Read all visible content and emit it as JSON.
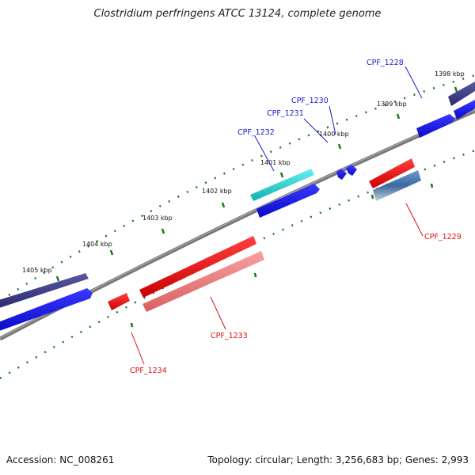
{
  "title": "Clostridium perfringens ATCC 13124, complete genome",
  "footer": {
    "accession": "Accession: NC_008261",
    "summary": "Topology: circular; Length: 3,256,683 bp; Genes: 2,993"
  },
  "ticks": [
    "1398 kbp",
    "1399 kbp",
    "1400 kbp",
    "1401 kbp",
    "1402 kbp",
    "1403 kbp",
    "1404 kbp",
    "1405 kbp"
  ],
  "genes": [
    {
      "id": "CPF_1228",
      "label": "CPF_1228",
      "strand": "forward"
    },
    {
      "id": "CPF_1229",
      "label": "CPF_1229",
      "strand": "reverse"
    },
    {
      "id": "CPF_1230",
      "label": "CPF_1230",
      "strand": "forward"
    },
    {
      "id": "CPF_1231",
      "label": "CPF_1231",
      "strand": "forward"
    },
    {
      "id": "CPF_1232",
      "label": "CPF_1232",
      "strand": "forward"
    },
    {
      "id": "CPF_1233",
      "label": "CPF_1233",
      "strand": "reverse"
    },
    {
      "id": "CPF_1234",
      "label": "CPF_1234",
      "strand": "reverse"
    }
  ],
  "colors": {
    "forward_label": "#1a1acc",
    "reverse_label": "#dd1111",
    "backbone": "#7a7a7a",
    "tick_dots": "#1a7a1a",
    "cds_forward": "#1010dd",
    "cds_reverse": "#ee1111",
    "feature_forward": "#3c3a80",
    "feature_cyan": "#20c8c8",
    "feature_reverse_pink": "#ee8080",
    "feature_reverse_steel": "#4a7ab0"
  }
}
